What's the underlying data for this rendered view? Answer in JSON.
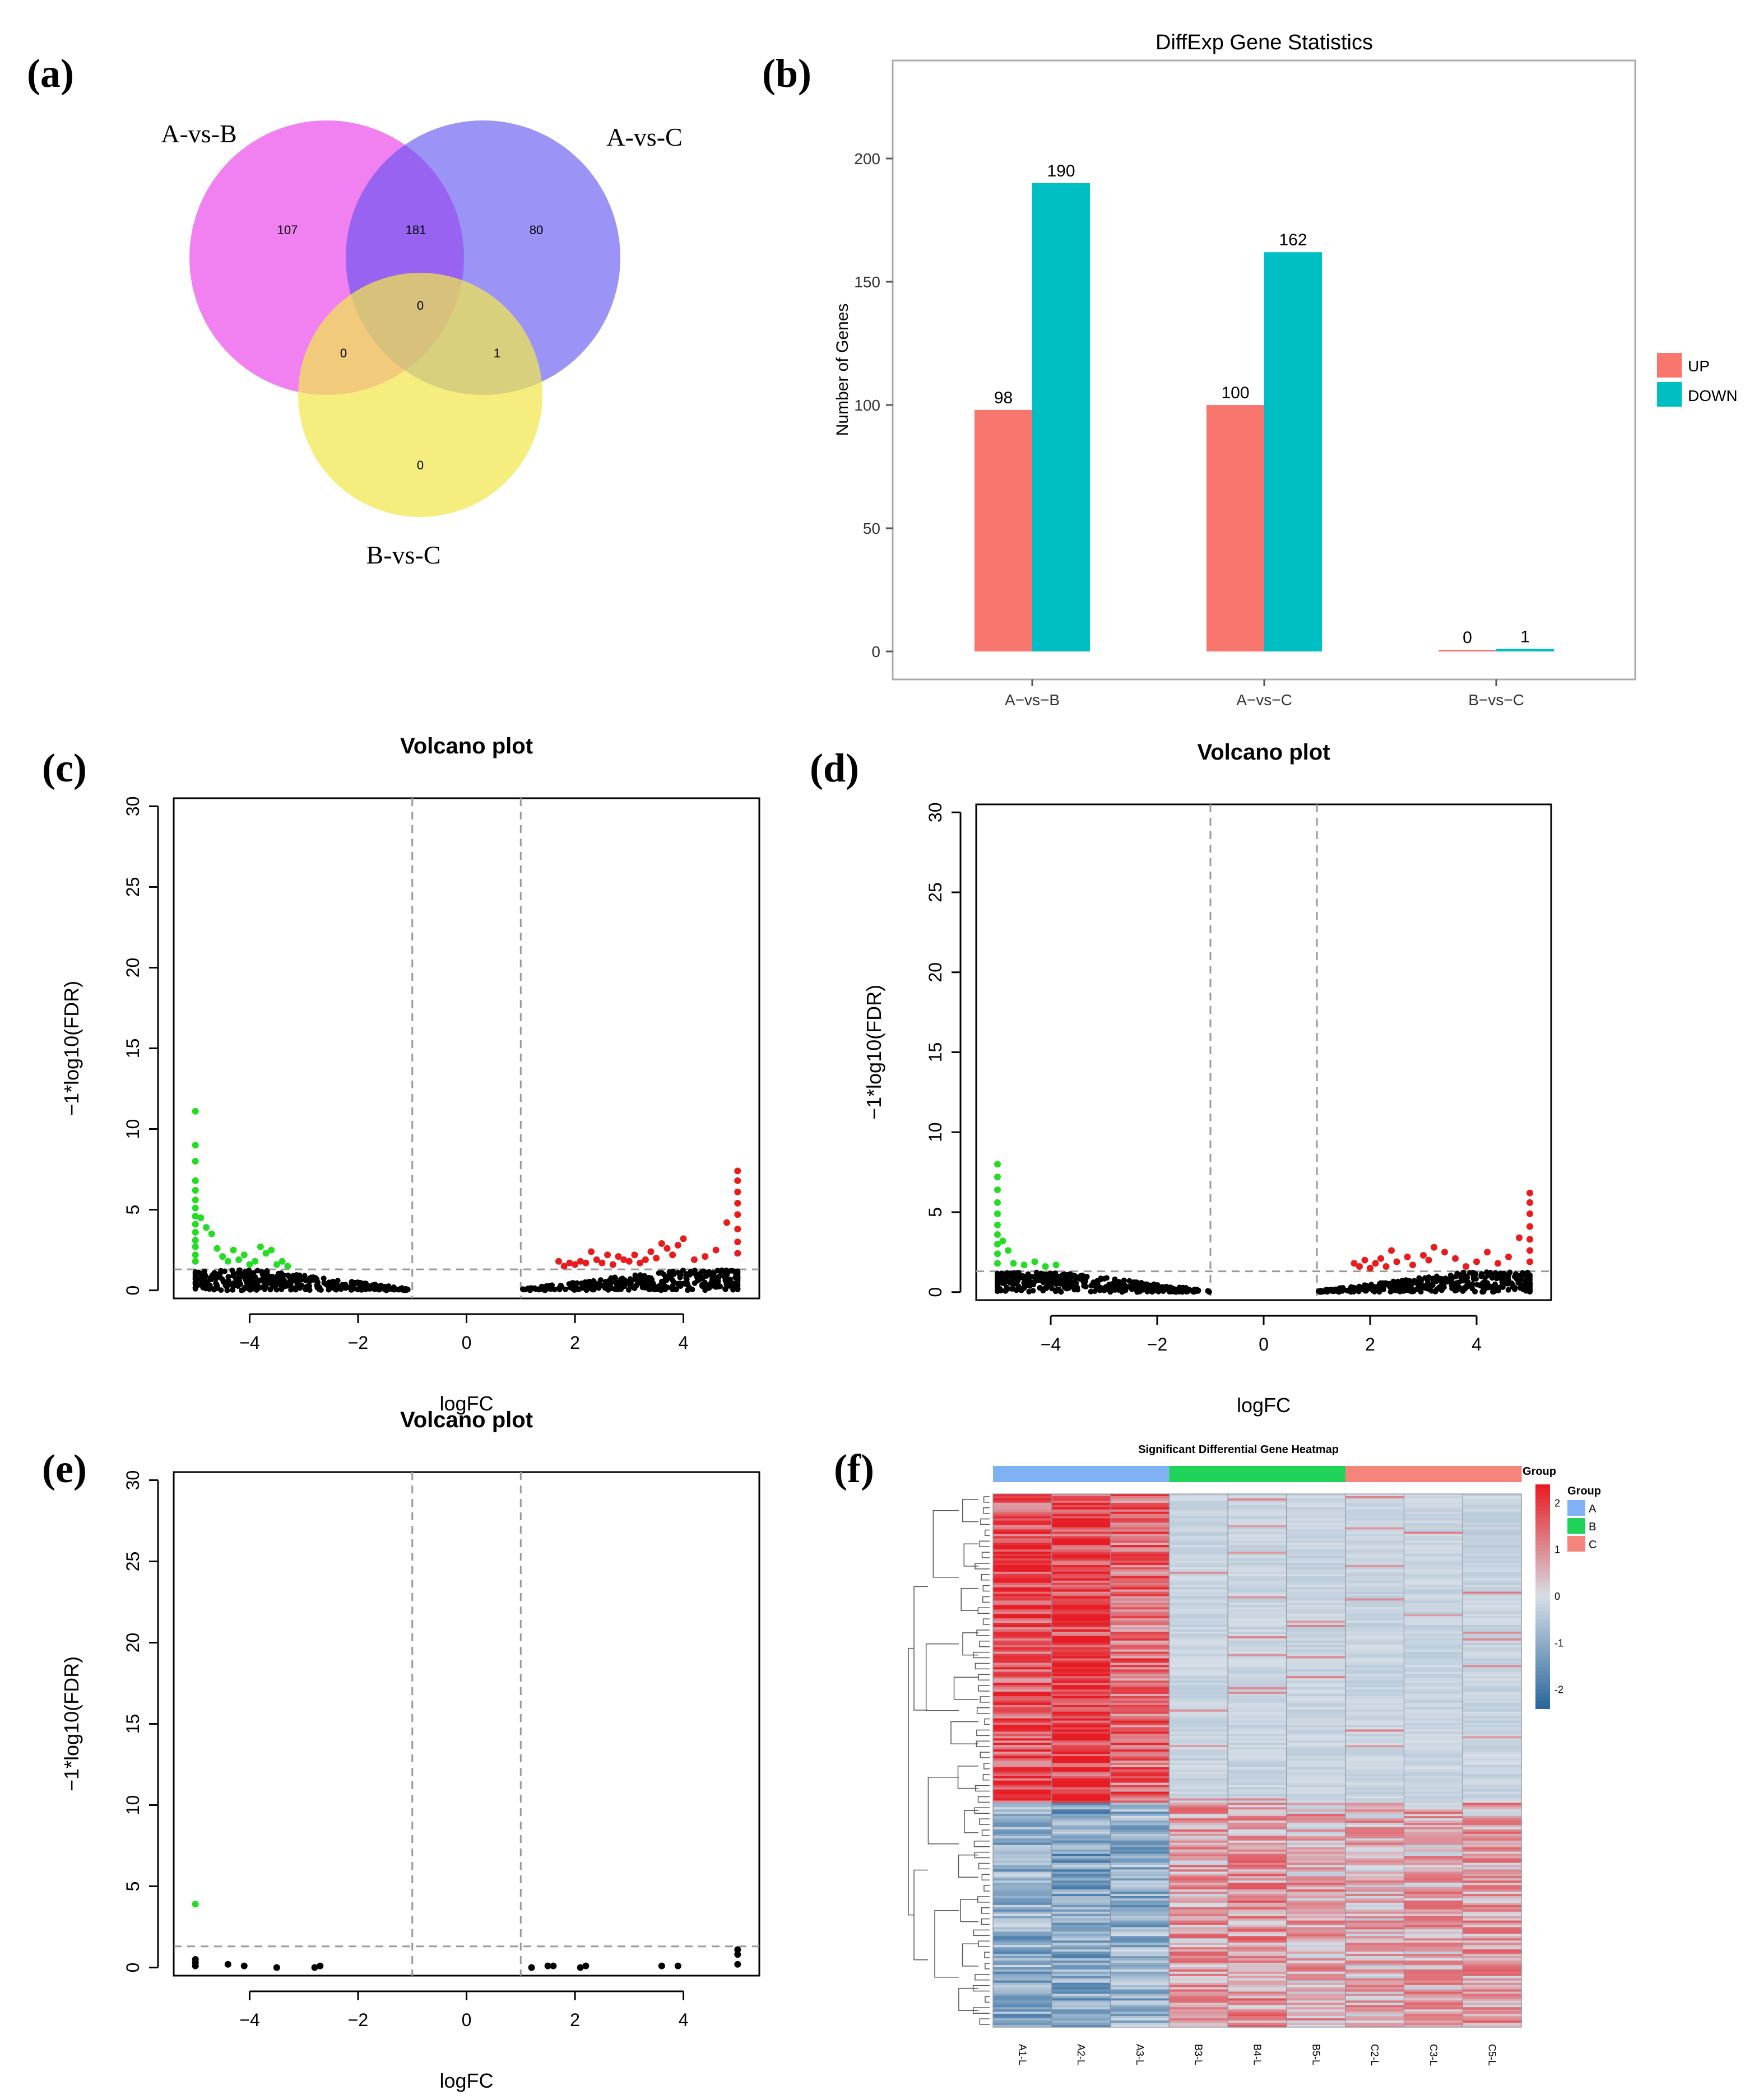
{
  "panels": {
    "a": "(a)",
    "b": "(b)",
    "c": "(c)",
    "d": "(d)",
    "e": "(e)",
    "f": "(f)"
  },
  "venn": {
    "sets": [
      {
        "name": "A-vs-B",
        "color": "#EC4FEA"
      },
      {
        "name": "A-vs-C",
        "color": "#7B6EF2"
      },
      {
        "name": "B-vs-C",
        "color": "#F3EA6C"
      }
    ],
    "regions": {
      "only_AB": "107",
      "only_AC": "80",
      "only_BC": "0",
      "AB_AC": "181",
      "AB_BC": "0",
      "AC_BC": "1",
      "all": "0"
    }
  },
  "chart_data": [
    {
      "type": "bar",
      "title": "DiffExp Gene Statistics",
      "categories": [
        "A−vs−B",
        "A−vs−C",
        "B−vs−C"
      ],
      "series": [
        {
          "name": "UP",
          "color": "#F8766D",
          "values": [
            98,
            100,
            0
          ]
        },
        {
          "name": "DOWN",
          "color": "#00BFC4",
          "values": [
            190,
            162,
            1
          ]
        }
      ],
      "xlabel": "",
      "ylabel": "Number of Genes",
      "ylim": [
        0,
        230
      ],
      "yticks": [
        0,
        50,
        100,
        150,
        200
      ]
    },
    {
      "type": "scatter",
      "title": "Volcano plot",
      "xlabel": "logFC",
      "ylabel": "−1*log10(FDR)",
      "xlim": [
        -5.4,
        5.4
      ],
      "ylim": [
        -0.5,
        30.5
      ],
      "xticks": [
        -4,
        -2,
        0,
        2,
        4
      ],
      "yticks": [
        0,
        5,
        10,
        15,
        20,
        25,
        30
      ],
      "fc_threshold": 1,
      "fdr_threshold": 1.3,
      "series": [
        {
          "name": "down",
          "color": "#22DD22",
          "points": [
            [
              -5,
              11.1
            ],
            [
              -5,
              9
            ],
            [
              -5,
              8
            ],
            [
              -5,
              6.8
            ],
            [
              -5,
              6.2
            ],
            [
              -5,
              5.6
            ],
            [
              -5,
              5.1
            ],
            [
              -5,
              4.6
            ],
            [
              -5,
              4.1
            ],
            [
              -5,
              3.6
            ],
            [
              -5,
              3.1
            ],
            [
              -5,
              2.7
            ],
            [
              -5,
              2.2
            ],
            [
              -5,
              1.8
            ],
            [
              -4.9,
              4.5
            ],
            [
              -4.8,
              3.9
            ],
            [
              -4.7,
              3.5
            ],
            [
              -4.6,
              2.6
            ],
            [
              -4.5,
              2.1
            ],
            [
              -4.4,
              1.8
            ],
            [
              -4.3,
              2.5
            ],
            [
              -4.2,
              1.9
            ],
            [
              -4.1,
              2.2
            ],
            [
              -4,
              1.6
            ],
            [
              -3.9,
              1.8
            ],
            [
              -3.8,
              2.7
            ],
            [
              -3.7,
              2.3
            ],
            [
              -3.6,
              2.5
            ],
            [
              -3.5,
              1.6
            ],
            [
              -3.4,
              1.8
            ],
            [
              -3.3,
              1.5
            ]
          ]
        },
        {
          "name": "up",
          "color": "#E81C1C",
          "points": [
            [
              5,
              7.4
            ],
            [
              5,
              6.8
            ],
            [
              5,
              6.1
            ],
            [
              5,
              5.4
            ],
            [
              5,
              4.7
            ],
            [
              5,
              3.8
            ],
            [
              5,
              3
            ],
            [
              5,
              2.3
            ],
            [
              4.8,
              4.2
            ],
            [
              4.6,
              2.5
            ],
            [
              4.4,
              2.1
            ],
            [
              4.2,
              1.9
            ],
            [
              4,
              3.2
            ],
            [
              3.9,
              2.8
            ],
            [
              3.8,
              2.2
            ],
            [
              3.7,
              2.6
            ],
            [
              3.6,
              2.9
            ],
            [
              3.5,
              2
            ],
            [
              3.4,
              2.4
            ],
            [
              3.3,
              1.9
            ],
            [
              3.2,
              1.7
            ],
            [
              3.1,
              2.2
            ],
            [
              3,
              1.8
            ],
            [
              2.9,
              1.9
            ],
            [
              2.8,
              2.1
            ],
            [
              2.7,
              1.6
            ],
            [
              2.6,
              2.2
            ],
            [
              2.5,
              1.7
            ],
            [
              2.4,
              1.9
            ],
            [
              2.3,
              2.4
            ],
            [
              2.2,
              1.7
            ],
            [
              2.1,
              1.8
            ],
            [
              2,
              1.6
            ],
            [
              1.9,
              1.7
            ],
            [
              1.8,
              1.5
            ],
            [
              1.7,
              1.8
            ]
          ]
        }
      ]
    },
    {
      "type": "scatter",
      "title": "Volcano plot",
      "xlabel": "logFC",
      "ylabel": "−1*log10(FDR)",
      "xlim": [
        -5.4,
        5.4
      ],
      "ylim": [
        -0.5,
        30.5
      ],
      "xticks": [
        -4,
        -2,
        0,
        2,
        4
      ],
      "yticks": [
        0,
        5,
        10,
        15,
        20,
        25,
        30
      ],
      "fc_threshold": 1,
      "fdr_threshold": 1.3,
      "series": [
        {
          "name": "down",
          "color": "#22DD22",
          "points": [
            [
              -5,
              8
            ],
            [
              -5,
              7.2
            ],
            [
              -5,
              6.4
            ],
            [
              -5,
              5.6
            ],
            [
              -5,
              4.9
            ],
            [
              -5,
              4.2
            ],
            [
              -5,
              3.6
            ],
            [
              -5,
              3
            ],
            [
              -5,
              2.4
            ],
            [
              -5,
              1.8
            ],
            [
              -4.9,
              3.2
            ],
            [
              -4.8,
              2.6
            ],
            [
              -4.7,
              1.8
            ],
            [
              -4.5,
              1.7
            ],
            [
              -4.3,
              1.9
            ],
            [
              -4.1,
              1.6
            ],
            [
              -3.9,
              1.7
            ]
          ]
        },
        {
          "name": "up",
          "color": "#E81C1C",
          "points": [
            [
              5,
              6.2
            ],
            [
              5,
              5.6
            ],
            [
              5,
              4.9
            ],
            [
              5,
              4.1
            ],
            [
              5,
              3.3
            ],
            [
              5,
              2.6
            ],
            [
              5,
              1.9
            ],
            [
              4.8,
              3.4
            ],
            [
              4.6,
              2.2
            ],
            [
              4.4,
              1.8
            ],
            [
              4.2,
              2.5
            ],
            [
              4,
              1.9
            ],
            [
              3.8,
              1.6
            ],
            [
              3.6,
              2.1
            ],
            [
              3.4,
              2.5
            ],
            [
              3.2,
              2.8
            ],
            [
              3.1,
              2
            ],
            [
              3,
              2.3
            ],
            [
              2.8,
              1.7
            ],
            [
              2.7,
              2.2
            ],
            [
              2.5,
              1.9
            ],
            [
              2.4,
              2.6
            ],
            [
              2.3,
              1.6
            ],
            [
              2.2,
              2.1
            ],
            [
              2.1,
              1.8
            ],
            [
              2,
              1.5
            ],
            [
              1.9,
              2
            ],
            [
              1.8,
              1.6
            ],
            [
              1.7,
              1.8
            ]
          ]
        }
      ]
    },
    {
      "type": "scatter",
      "title": "Volcano plot",
      "xlabel": "logFC",
      "ylabel": "−1*log10(FDR)",
      "xlim": [
        -5.4,
        5.4
      ],
      "ylim": [
        -0.5,
        30.5
      ],
      "xticks": [
        -4,
        -2,
        0,
        2,
        4
      ],
      "yticks": [
        0,
        5,
        10,
        15,
        20,
        25,
        30
      ],
      "fc_threshold": 1,
      "fdr_threshold": 1.3,
      "series": [
        {
          "name": "down",
          "color": "#22DD22",
          "points": [
            [
              -5,
              3.9
            ]
          ]
        },
        {
          "name": "ns",
          "color": "#000000",
          "points": [
            [
              -5,
              0.5
            ],
            [
              -5,
              0.3
            ],
            [
              -5,
              0.1
            ],
            [
              -4.4,
              0.2
            ],
            [
              -4.1,
              0.1
            ],
            [
              -3.5,
              0
            ],
            [
              -2.8,
              0
            ],
            [
              -2.7,
              0.1
            ],
            [
              1.2,
              0
            ],
            [
              1.5,
              0.1
            ],
            [
              1.6,
              0.1
            ],
            [
              2.1,
              0
            ],
            [
              2.2,
              0.1
            ],
            [
              3.6,
              0.1
            ],
            [
              3.9,
              0.1
            ],
            [
              5,
              0.2
            ],
            [
              5,
              0.8
            ],
            [
              5,
              1.1
            ]
          ]
        }
      ]
    },
    {
      "type": "heatmap",
      "title": "Significant Differential Gene Heatmap",
      "columns": [
        "A1-L",
        "A2-L",
        "A3-L",
        "B3-L",
        "B4-L",
        "B5-L",
        "C2-L",
        "C3-L",
        "C5-L"
      ],
      "column_groups": [
        "A",
        "A",
        "A",
        "B",
        "B",
        "B",
        "C",
        "C",
        "C"
      ],
      "legend_title": "Group",
      "groups": [
        {
          "name": "A",
          "color": "#80B1F5"
        },
        {
          "name": "B",
          "color": "#1FD35A"
        },
        {
          "name": "C",
          "color": "#F4847C"
        }
      ],
      "scale_ticks": [
        "2",
        "1",
        "0",
        "-1",
        "-2"
      ],
      "row_blocks": [
        {
          "rows": "upper",
          "mean_values": [
            1.7,
            1.9,
            1.4,
            -0.2,
            -0.2,
            -0.3,
            -0.2,
            -0.3,
            -0.3
          ]
        },
        {
          "rows": "lower",
          "mean_values": [
            -1.0,
            -1.2,
            -0.9,
            0.7,
            0.8,
            0.6,
            0.5,
            0.6,
            0.7
          ]
        }
      ]
    }
  ]
}
